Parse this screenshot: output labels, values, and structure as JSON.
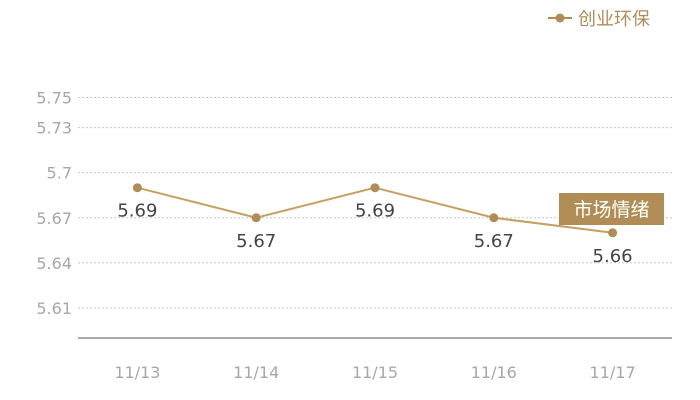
{
  "chart_data": {
    "type": "line",
    "categories": [
      "11/13",
      "11/14",
      "11/15",
      "11/16",
      "11/17"
    ],
    "series": [
      {
        "name": "创业环保",
        "values": [
          5.69,
          5.67,
          5.69,
          5.67,
          5.66
        ]
      }
    ],
    "data_labels": [
      "5.69",
      "5.67",
      "5.69",
      "5.67",
      "5.66"
    ],
    "y_ticks": [
      "5.75",
      "5.73",
      "5.7",
      "5.67",
      "5.64",
      "5.61"
    ],
    "ylim": [
      5.59,
      5.765
    ],
    "grid": true,
    "legend_position": "top-right",
    "annotation": "市场情绪",
    "colors": {
      "series": "#c4a064",
      "marker": "#b08d57",
      "badge": "#b08d57",
      "grid": "#c8c8c8",
      "axis": "#555555"
    }
  }
}
